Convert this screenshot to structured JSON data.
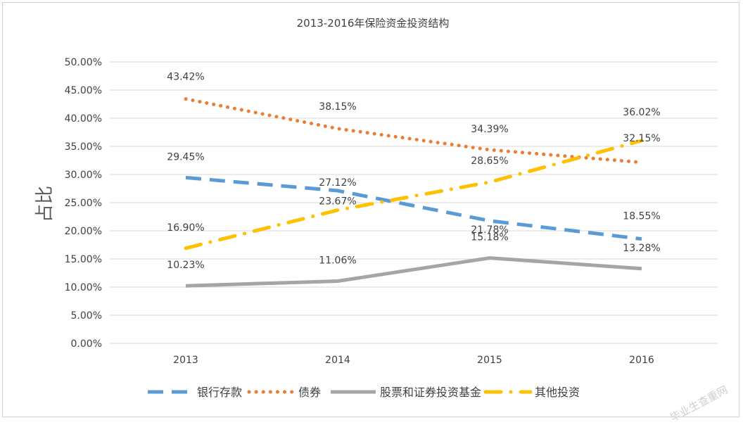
{
  "chart_data": {
    "type": "line",
    "title": "2013-2016年保险资金投资结构",
    "ylabel": "占比",
    "xlabel": "",
    "categories": [
      "2013",
      "2014",
      "2015",
      "2016"
    ],
    "ylim": [
      0,
      50
    ],
    "ytick_labels": [
      "0.00%",
      "5.00%",
      "10.00%",
      "15.00%",
      "20.00%",
      "25.00%",
      "30.00%",
      "35.00%",
      "40.00%",
      "45.00%",
      "50.00%"
    ],
    "grid": true,
    "legend_position": "bottom",
    "series": [
      {
        "name": "银行存款",
        "values": [
          29.45,
          27.12,
          21.78,
          18.55
        ],
        "labels": [
          "29.45%",
          "27.12%",
          "21.78%",
          "18.55%"
        ],
        "color": "#5B9BD5",
        "style": "dashed"
      },
      {
        "name": "债券",
        "values": [
          43.42,
          38.15,
          34.39,
          32.15
        ],
        "labels": [
          "43.42%",
          "38.15%",
          "34.39%",
          "32.15%"
        ],
        "color": "#ED7D31",
        "style": "dotted"
      },
      {
        "name": "股票和证券投资基金",
        "values": [
          10.23,
          11.06,
          15.18,
          13.28
        ],
        "labels": [
          "10.23%",
          "11.06%",
          "15.18%",
          "13.28%"
        ],
        "color": "#A5A5A5",
        "style": "solid"
      },
      {
        "name": "其他投资",
        "values": [
          16.9,
          23.67,
          28.65,
          36.02
        ],
        "labels": [
          "16.90%",
          "23.67%",
          "28.65%",
          "36.02%"
        ],
        "color": "#FFC000",
        "style": "dashdot"
      }
    ]
  },
  "watermark": "毕业生查重网"
}
